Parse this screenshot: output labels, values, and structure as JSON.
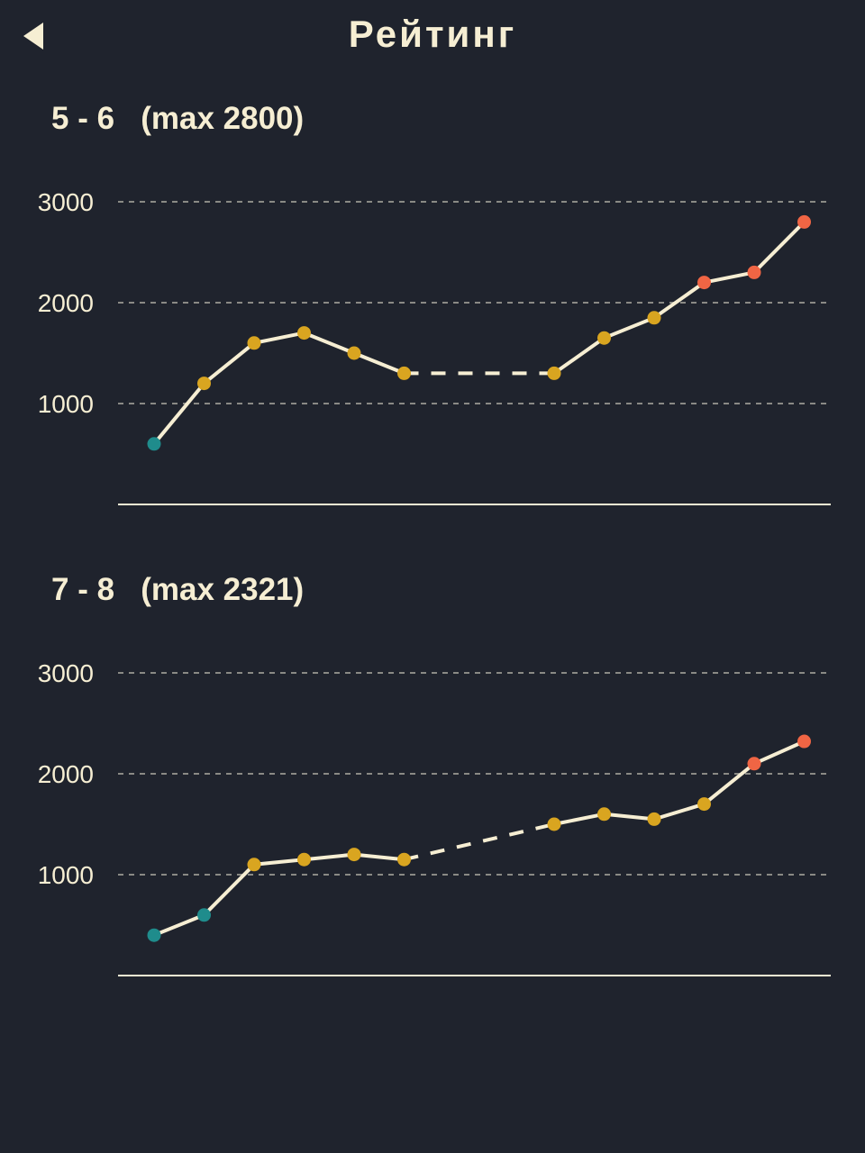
{
  "header": {
    "title": "Рейтинг",
    "back_icon": "back-triangle-icon"
  },
  "colors": {
    "background": "#1f232d",
    "text": "#f6eed3",
    "line": "#f6eed3",
    "grid": "#8a8a85",
    "low": "#1f8c8c",
    "mid": "#d9a520",
    "high": "#f06544"
  },
  "chart_data": [
    {
      "type": "line",
      "title": "5 - 6   (max 2800)",
      "ylim": [
        0,
        3000
      ],
      "yticks": [
        "3000",
        "2000",
        "1000"
      ],
      "ytick_values": [
        3000,
        2000,
        1000
      ],
      "grid": true,
      "x": [
        1,
        2,
        3,
        4,
        5,
        6,
        9,
        10,
        11,
        12,
        13,
        14
      ],
      "values": [
        600,
        1200,
        1600,
        1700,
        1500,
        1300,
        1300,
        1650,
        1850,
        2200,
        2300,
        2800
      ],
      "point_categories": [
        "low",
        "mid",
        "mid",
        "mid",
        "mid",
        "mid",
        "mid",
        "mid",
        "mid",
        "high",
        "high",
        "high"
      ],
      "dashed_segment_after_index": 5
    },
    {
      "type": "line",
      "title": "7 - 8   (max 2321)",
      "ylim": [
        0,
        3000
      ],
      "yticks": [
        "3000",
        "2000",
        "1000"
      ],
      "ytick_values": [
        3000,
        2000,
        1000
      ],
      "grid": true,
      "x": [
        1,
        2,
        3,
        4,
        5,
        6,
        9,
        10,
        11,
        12,
        13,
        14
      ],
      "values": [
        400,
        600,
        1100,
        1150,
        1200,
        1150,
        1500,
        1600,
        1550,
        1700,
        2100,
        2321
      ],
      "point_categories": [
        "low",
        "low",
        "mid",
        "mid",
        "mid",
        "mid",
        "mid",
        "mid",
        "mid",
        "mid",
        "high",
        "high"
      ],
      "dashed_segment_after_index": 5
    }
  ]
}
